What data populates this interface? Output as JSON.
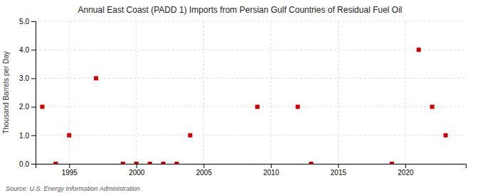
{
  "chart_data": {
    "type": "scatter",
    "title": "Annual East Coast (PADD 1) Imports from Persian Gulf Countries of Residual Fuel Oil",
    "y_label": "Thousand Barrels per Day",
    "source": "Source: U.S. Energy Information Administration",
    "x": [
      1993,
      1994,
      1995,
      1997,
      1999,
      2000,
      2001,
      2002,
      2003,
      2004,
      2009,
      2012,
      2013,
      2019,
      2021,
      2022,
      2023
    ],
    "values": [
      2.0,
      0.0,
      1.0,
      3.0,
      0.0,
      0.0,
      0.0,
      0.0,
      0.0,
      1.0,
      2.0,
      2.0,
      0.0,
      0.0,
      4.0,
      2.0,
      1.0
    ],
    "color": "#cc0000",
    "marker": "square",
    "xlim": [
      1992.5,
      2024.5
    ],
    "ylim": [
      0.0,
      5.0
    ],
    "xticks": [
      1995,
      2000,
      2005,
      2010,
      2015,
      2020
    ],
    "yticks": [
      {
        "value": 0.0,
        "label": "0.0"
      },
      {
        "value": 1.0,
        "label": "1.0"
      },
      {
        "value": 2.0,
        "label": "2.0"
      },
      {
        "value": 3.0,
        "label": "3.0"
      },
      {
        "value": 4.0,
        "label": "4.0"
      },
      {
        "value": 5.0,
        "label": "5.0"
      }
    ],
    "grid": true
  }
}
